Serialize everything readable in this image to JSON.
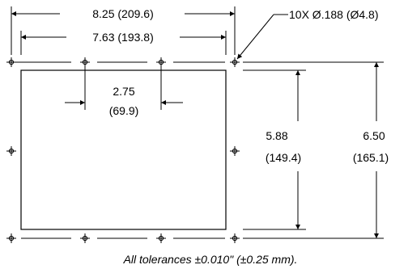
{
  "dimensions": {
    "overall_width": "8.25 (209.6)",
    "hole_spacing_width": "7.63 (193.8)",
    "hole_callout": "10X Ø.188 (Ø4.8)",
    "hole_pitch_value": "2.75",
    "hole_pitch_metric": "(69.9)",
    "hole_spacing_height_value": "5.88",
    "hole_spacing_height_metric": "(149.4)",
    "overall_height_value": "6.50",
    "overall_height_metric": "(165.1)"
  },
  "note": "All tolerances ±0.010\" (±0.25 mm).",
  "hole_count": 10
}
